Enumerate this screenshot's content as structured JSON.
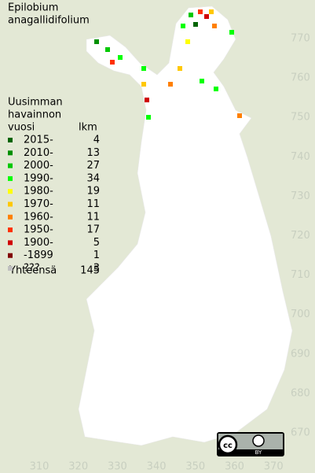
{
  "title": [
    "Epilobium",
    "anagallidifolium"
  ],
  "legend": {
    "header": [
      "Uusimman",
      "havainnon",
      "vuosi"
    ],
    "count_header": "lkm",
    "rows": [
      {
        "label": "2015-",
        "count": 4,
        "color": "#006400"
      },
      {
        "label": "2010-",
        "count": 13,
        "color": "#009000"
      },
      {
        "label": "2000-",
        "count": 27,
        "color": "#00c800"
      },
      {
        "label": "1990-",
        "count": 34,
        "color": "#00ff00"
      },
      {
        "label": "1980-",
        "count": 19,
        "color": "#ffff00"
      },
      {
        "label": "1970-",
        "count": 11,
        "color": "#ffc800"
      },
      {
        "label": "1960-",
        "count": 11,
        "color": "#ff8000"
      },
      {
        "label": "1950-",
        "count": 17,
        "color": "#ff3000"
      },
      {
        "label": "1900-",
        "count": 5,
        "color": "#d00000"
      },
      {
        "label": "-1899",
        "count": 1,
        "color": "#800000"
      },
      {
        "label": "???",
        "count": 3,
        "color": "#c0c0c0"
      }
    ],
    "total_label": "Yhteensä",
    "total": 145
  },
  "grid": {
    "northing": [
      770,
      760,
      750,
      740,
      730,
      720,
      710,
      700,
      690,
      680,
      670
    ],
    "easting": [
      310,
      320,
      330,
      340,
      350,
      360,
      370
    ]
  },
  "license": "BY"
}
